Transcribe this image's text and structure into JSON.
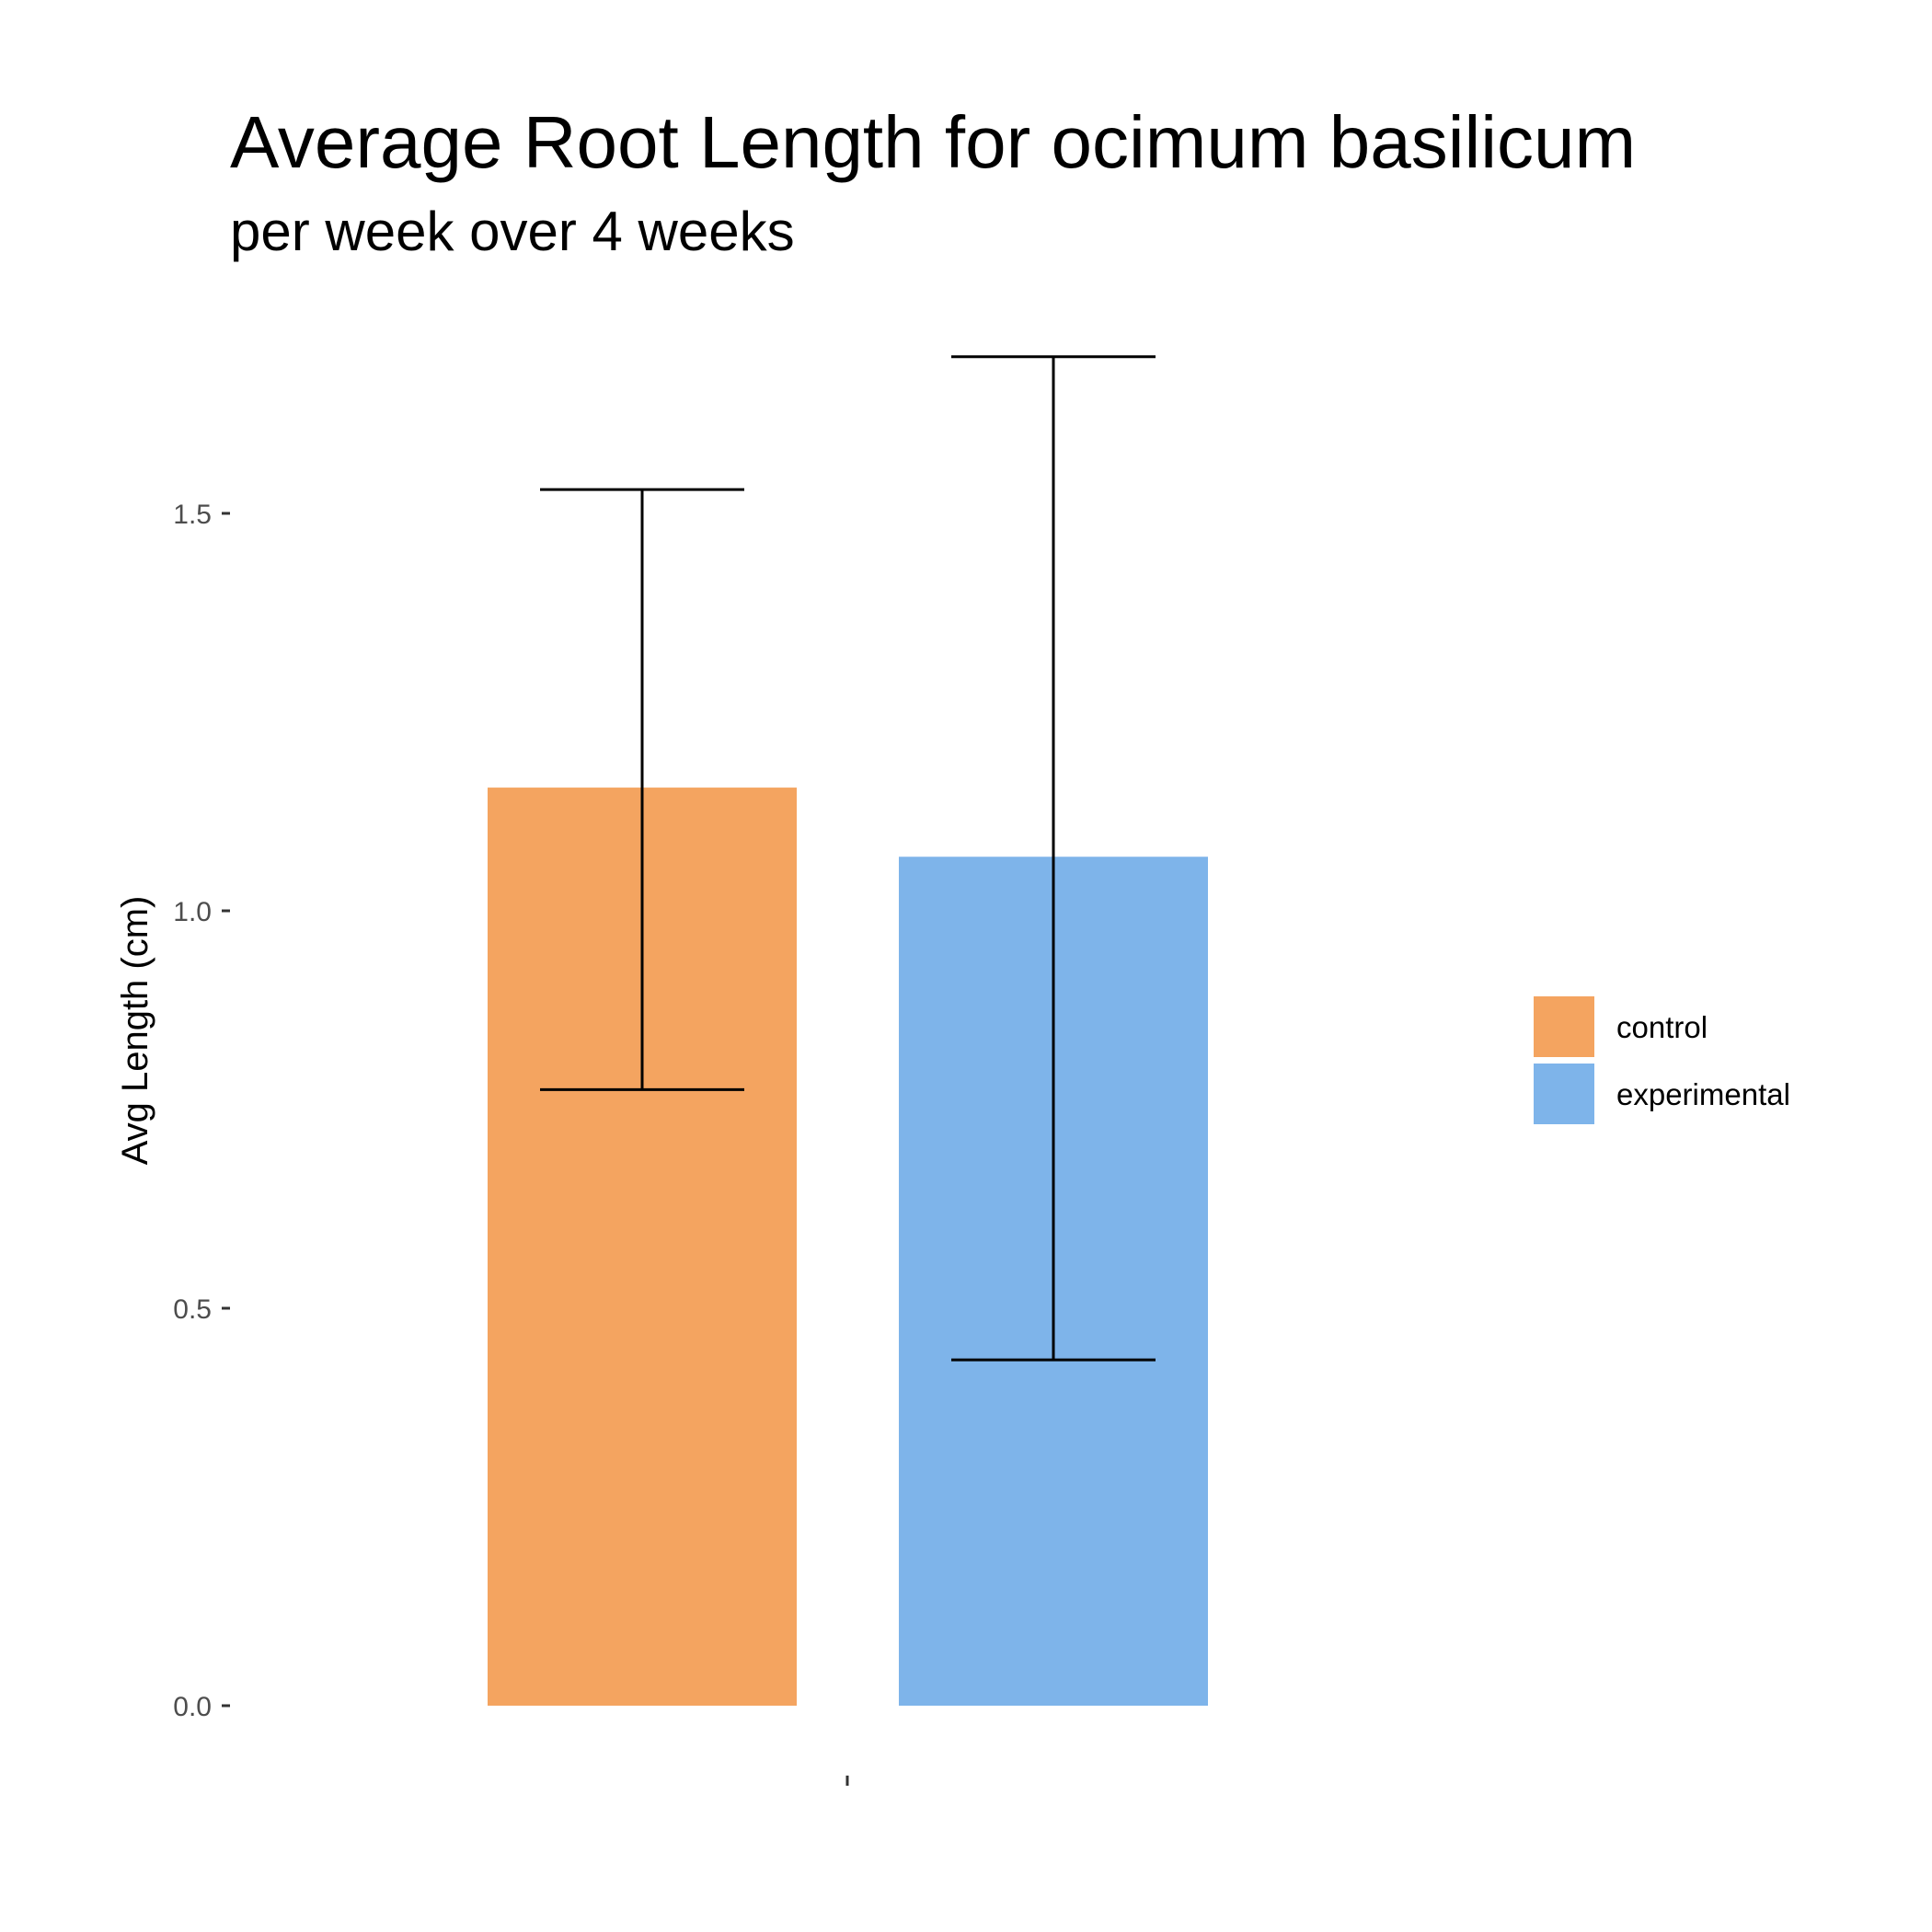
{
  "chart_data": {
    "type": "bar",
    "title": "Average Root Length for ocimum basilicum",
    "subtitle": "per week over 4 weeks",
    "xlabel": "",
    "ylabel": "Avg Length (cm)",
    "ylim": [
      0,
      1.7
    ],
    "yticks": [
      {
        "value": 0.0,
        "label": "0.0"
      },
      {
        "value": 0.5,
        "label": "0.5"
      },
      {
        "value": 1.0,
        "label": "1.0"
      },
      {
        "value": 1.5,
        "label": "1.5"
      }
    ],
    "categories": [
      ""
    ],
    "series": [
      {
        "name": "control",
        "values": [
          1.155
        ],
        "error_low": [
          0.775
        ],
        "error_high": [
          1.53
        ],
        "color": "#F4A460"
      },
      {
        "name": "experimental",
        "values": [
          1.068
        ],
        "error_low": [
          0.435
        ],
        "error_high": [
          1.697
        ],
        "color": "#7EB4EA"
      }
    ],
    "grid": false,
    "legend_position": "right"
  }
}
